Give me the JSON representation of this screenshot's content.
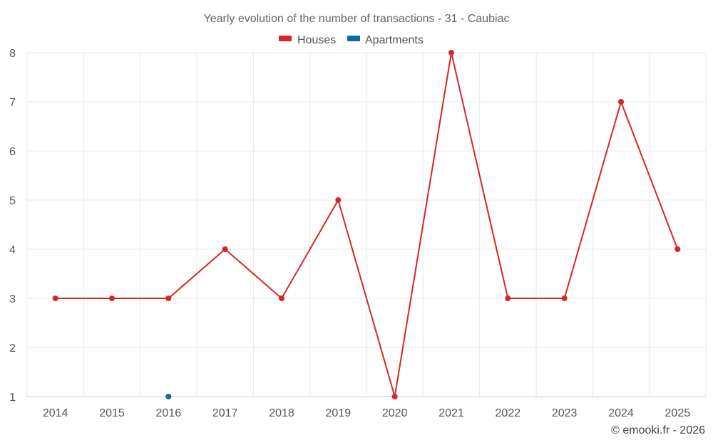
{
  "chart_data": {
    "type": "line",
    "title": "Yearly evolution of the number of transactions - 31 - Caubiac",
    "categories": [
      "2014",
      "2015",
      "2016",
      "2017",
      "2018",
      "2019",
      "2020",
      "2021",
      "2022",
      "2023",
      "2024",
      "2025"
    ],
    "ylim": [
      1,
      8
    ],
    "yticks": [
      1,
      2,
      3,
      4,
      5,
      6,
      7,
      8
    ],
    "grid": true,
    "legend_position": "top-center",
    "series": [
      {
        "name": "Houses",
        "color": "#d62728",
        "values": [
          3,
          3,
          3,
          4,
          3,
          5,
          1,
          8,
          3,
          3,
          7,
          4
        ]
      },
      {
        "name": "Apartments",
        "color": "#0b6aa2",
        "values": [
          null,
          null,
          1,
          null,
          null,
          null,
          null,
          null,
          null,
          null,
          null,
          null
        ]
      }
    ]
  },
  "credit": "© emooki.fr - 2026"
}
